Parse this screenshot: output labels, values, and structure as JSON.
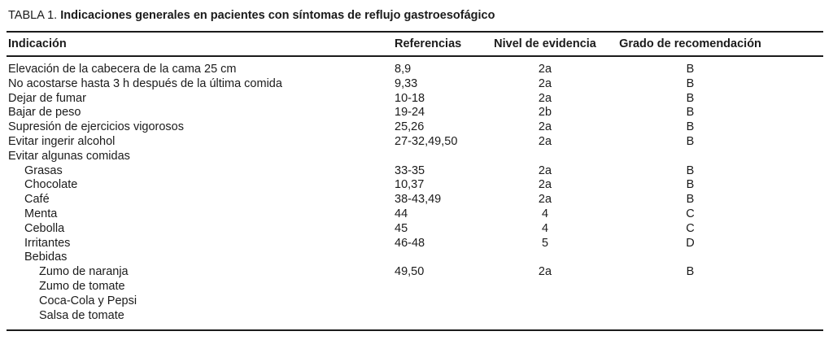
{
  "page": {
    "background_color": "#ffffff",
    "text_color": "#1b1b1b",
    "rule_color": "#1b1b1b"
  },
  "table": {
    "title_label": "TABLA 1.",
    "title_text": "Indicaciones generales en pacientes con síntomas de reflujo gastroesofágico",
    "columns": [
      "Indicación",
      "Referencias",
      "Nivel de evidencia",
      "Grado de recomendación"
    ],
    "rows": [
      {
        "indent": 0,
        "indicacion": "Elevación de la cabecera de la cama 25 cm",
        "referencias": "8,9",
        "nivel": "2a",
        "grado": "B"
      },
      {
        "indent": 0,
        "indicacion": "No acostarse hasta 3 h después de la última comida",
        "referencias": "9,33",
        "nivel": "2a",
        "grado": "B"
      },
      {
        "indent": 0,
        "indicacion": "Dejar de fumar",
        "referencias": "10-18",
        "nivel": "2a",
        "grado": "B"
      },
      {
        "indent": 0,
        "indicacion": "Bajar de peso",
        "referencias": "19-24",
        "nivel": "2b",
        "grado": "B"
      },
      {
        "indent": 0,
        "indicacion": "Supresión de ejercicios vigorosos",
        "referencias": "25,26",
        "nivel": "2a",
        "grado": "B"
      },
      {
        "indent": 0,
        "indicacion": "Evitar ingerir alcohol",
        "referencias": "27-32,49,50",
        "nivel": "2a",
        "grado": "B"
      },
      {
        "indent": 0,
        "indicacion": "Evitar algunas comidas",
        "referencias": "",
        "nivel": "",
        "grado": ""
      },
      {
        "indent": 1,
        "indicacion": "Grasas",
        "referencias": "33-35",
        "nivel": "2a",
        "grado": "B"
      },
      {
        "indent": 1,
        "indicacion": "Chocolate",
        "referencias": "10,37",
        "nivel": "2a",
        "grado": "B"
      },
      {
        "indent": 1,
        "indicacion": "Café",
        "referencias": "38-43,49",
        "nivel": "2a",
        "grado": "B"
      },
      {
        "indent": 1,
        "indicacion": "Menta",
        "referencias": "44",
        "nivel": "4",
        "grado": "C"
      },
      {
        "indent": 1,
        "indicacion": "Cebolla",
        "referencias": "45",
        "nivel": "4",
        "grado": "C"
      },
      {
        "indent": 1,
        "indicacion": "Irritantes",
        "referencias": "46-48",
        "nivel": "5",
        "grado": "D"
      },
      {
        "indent": 1,
        "indicacion": "Bebidas",
        "referencias": "",
        "nivel": "",
        "grado": ""
      },
      {
        "indent": 2,
        "indicacion": "Zumo de naranja",
        "referencias": "49,50",
        "nivel": "2a",
        "grado": "B"
      },
      {
        "indent": 2,
        "indicacion": "Zumo de tomate",
        "referencias": "",
        "nivel": "",
        "grado": ""
      },
      {
        "indent": 2,
        "indicacion": "Coca-Cola y Pepsi",
        "referencias": "",
        "nivel": "",
        "grado": ""
      },
      {
        "indent": 2,
        "indicacion": "Salsa de tomate",
        "referencias": "",
        "nivel": "",
        "grado": ""
      }
    ]
  }
}
